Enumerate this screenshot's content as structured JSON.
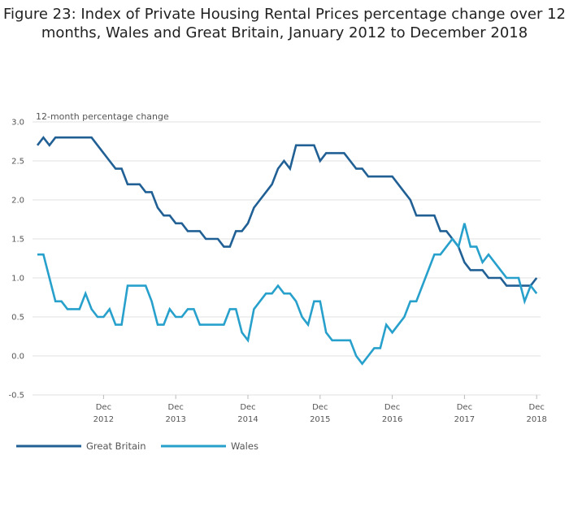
{
  "chart_data": {
    "type": "line",
    "title": "Figure 23: Index of Private Housing Rental Prices percentage change over 12 months, Wales and Great Britain, January 2012 to December 2018",
    "ylabel": "12-month percentage change",
    "xlabel": "",
    "ylim": [
      -0.5,
      3.0
    ],
    "yticks": [
      "3.0",
      "2.5",
      "2.0",
      "1.5",
      "1.0",
      "0.5",
      "0.0",
      "-0.5"
    ],
    "x_start": "Jan 2012",
    "x_end": "Dec 2018",
    "xticks": [
      {
        "month": "Dec",
        "year": "2012"
      },
      {
        "month": "Dec",
        "year": "2013"
      },
      {
        "month": "Dec",
        "year": "2014"
      },
      {
        "month": "Dec",
        "year": "2015"
      },
      {
        "month": "Dec",
        "year": "2016"
      },
      {
        "month": "Dec",
        "year": "2017"
      },
      {
        "month": "Dec",
        "year": "2018"
      }
    ],
    "grid": true,
    "legend_placement": "bottom-left",
    "series": [
      {
        "name": "Great Britain",
        "color": "#206095",
        "values": [
          2.7,
          2.8,
          2.7,
          2.8,
          2.8,
          2.8,
          2.8,
          2.8,
          2.8,
          2.8,
          2.7,
          2.6,
          2.5,
          2.4,
          2.4,
          2.2,
          2.2,
          2.2,
          2.1,
          2.1,
          1.9,
          1.8,
          1.8,
          1.7,
          1.7,
          1.6,
          1.6,
          1.6,
          1.5,
          1.5,
          1.5,
          1.4,
          1.4,
          1.6,
          1.6,
          1.7,
          1.9,
          2.0,
          2.1,
          2.2,
          2.4,
          2.5,
          2.4,
          2.7,
          2.7,
          2.7,
          2.7,
          2.5,
          2.6,
          2.6,
          2.6,
          2.6,
          2.5,
          2.4,
          2.4,
          2.3,
          2.3,
          2.3,
          2.3,
          2.3,
          2.2,
          2.1,
          2.0,
          1.8,
          1.8,
          1.8,
          1.8,
          1.6,
          1.6,
          1.5,
          1.4,
          1.2,
          1.1,
          1.1,
          1.1,
          1.0,
          1.0,
          1.0,
          0.9,
          0.9,
          0.9,
          0.9,
          0.9,
          1.0
        ]
      },
      {
        "name": "Wales",
        "color": "#27a0cc",
        "values": [
          1.3,
          1.3,
          1.0,
          0.7,
          0.7,
          0.6,
          0.6,
          0.6,
          0.8,
          0.6,
          0.5,
          0.5,
          0.6,
          0.4,
          0.4,
          0.9,
          0.9,
          0.9,
          0.9,
          0.7,
          0.4,
          0.4,
          0.6,
          0.5,
          0.5,
          0.6,
          0.6,
          0.4,
          0.4,
          0.4,
          0.4,
          0.4,
          0.6,
          0.6,
          0.3,
          0.2,
          0.6,
          0.7,
          0.8,
          0.8,
          0.9,
          0.8,
          0.8,
          0.7,
          0.5,
          0.4,
          0.7,
          0.7,
          0.3,
          0.2,
          0.2,
          0.2,
          0.2,
          0.0,
          -0.1,
          0.0,
          0.1,
          0.1,
          0.4,
          0.3,
          0.4,
          0.5,
          0.7,
          0.7,
          0.9,
          1.1,
          1.3,
          1.3,
          1.4,
          1.5,
          1.4,
          1.7,
          1.4,
          1.4,
          1.2,
          1.3,
          1.2,
          1.1,
          1.0,
          1.0,
          1.0,
          0.7,
          0.9,
          0.8
        ]
      }
    ]
  }
}
